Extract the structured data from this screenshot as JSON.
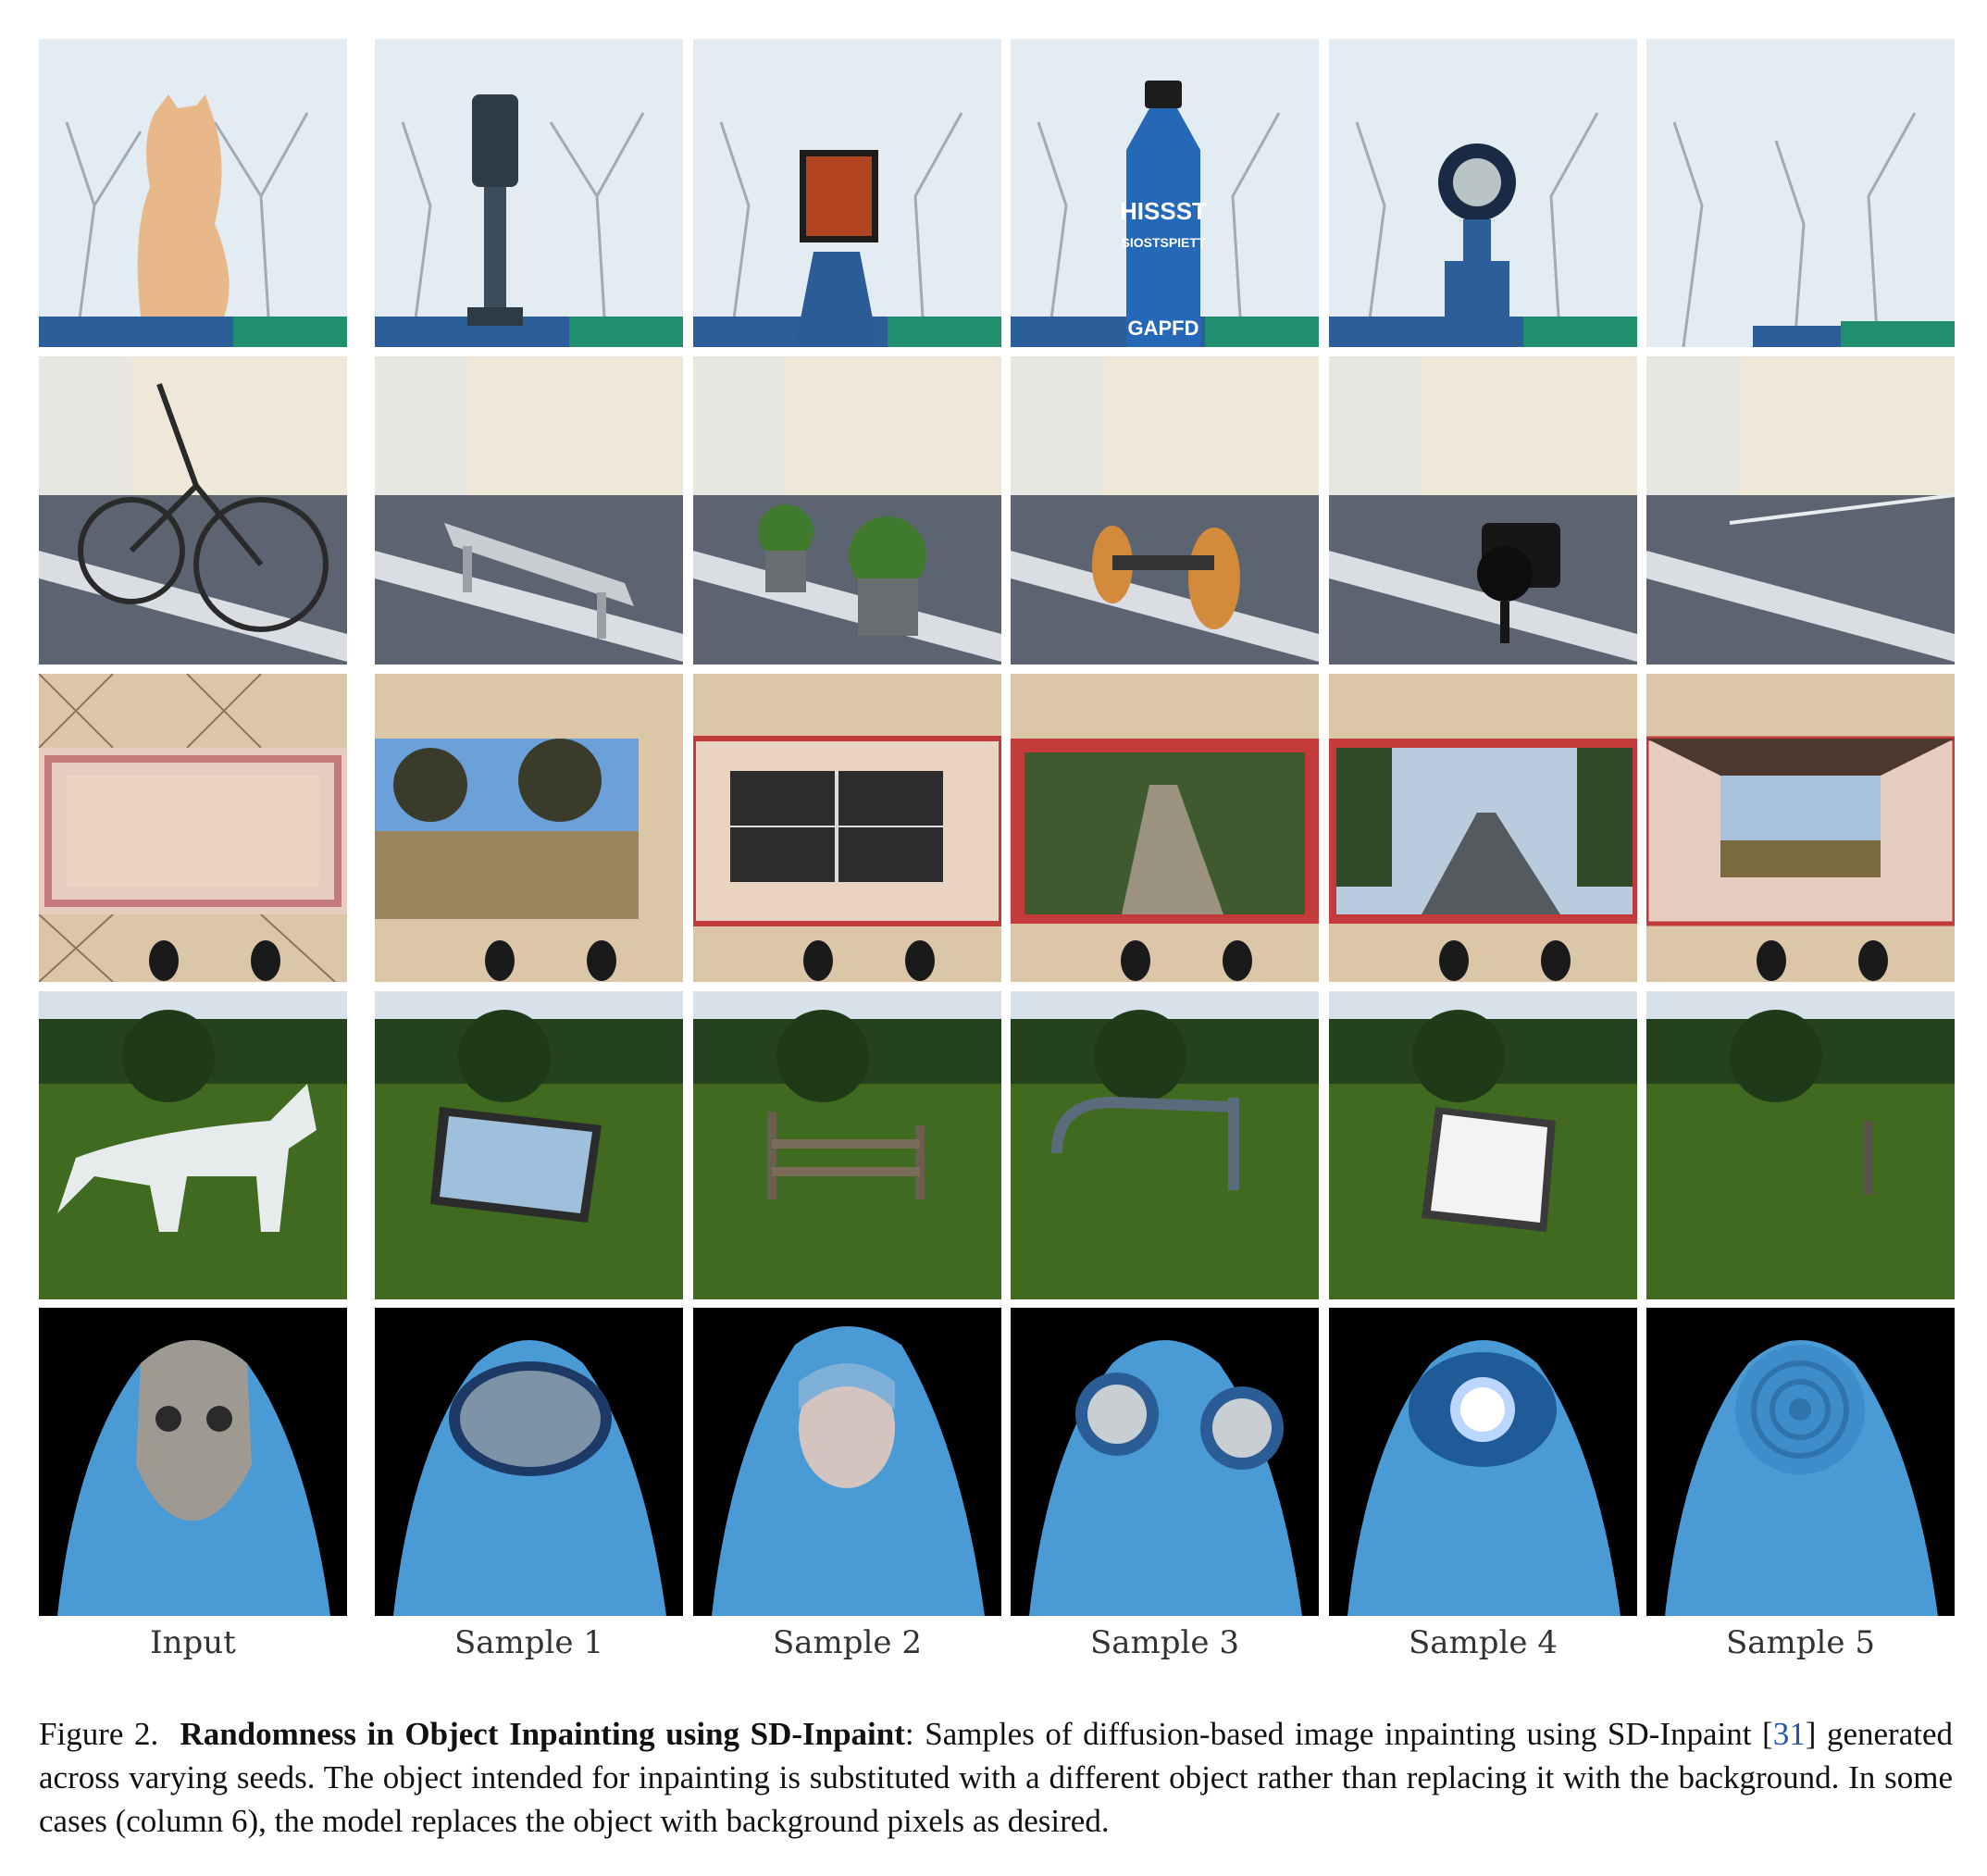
{
  "column_labels": [
    "Input",
    "Sample 1",
    "Sample 2",
    "Sample 3",
    "Sample 4",
    "Sample 5"
  ],
  "rows": [
    {
      "scene": "snowy-trees",
      "cells": [
        "cat",
        "parking-meter",
        "picture-frame-on-post",
        "blue-bottle",
        "round-lens-on-post",
        "empty"
      ],
      "bottle_text": [
        "HISSST",
        "SIOSTSPIETT",
        "GAPFD"
      ]
    },
    {
      "scene": "parking-lot",
      "cells": [
        "bicycle",
        "bench",
        "flower-pots",
        "small-cart",
        "camera",
        "empty"
      ]
    },
    {
      "scene": "tiled-floor",
      "cells": [
        "rug",
        "landscape-window",
        "window",
        "forest-road-frame",
        "road-frame",
        "open-box-sky"
      ]
    },
    {
      "scene": "meadow",
      "cells": [
        "horse",
        "lake-frame",
        "wooden-bench",
        "bent-pipe",
        "white-canvas",
        "empty"
      ]
    },
    {
      "scene": "blue-robe",
      "cells": [
        "meerkat",
        "city-mirror",
        "woman-face",
        "goggles",
        "glowing-light",
        "fabric-rose"
      ]
    }
  ],
  "caption": {
    "figure_label": "Figure 2.",
    "title": "Randomness in Object Inpainting using SD-Inpaint",
    "text_before_ref": ": Samples of diffusion-based image inpainting using SD-Inpaint [",
    "ref": "31",
    "text_after_ref": "] generated across varying seeds. The object intended for inpainting is substituted with a different object rather than replacing it with the background. In some cases (column 6), the model replaces the object with background pixels as desired."
  },
  "colors": {
    "sky": "#dfe8ef",
    "robe": "#4a9ad6",
    "grass": "#3f6a1f",
    "floor": "#dcc6a8",
    "asphalt": "#5b6470"
  }
}
